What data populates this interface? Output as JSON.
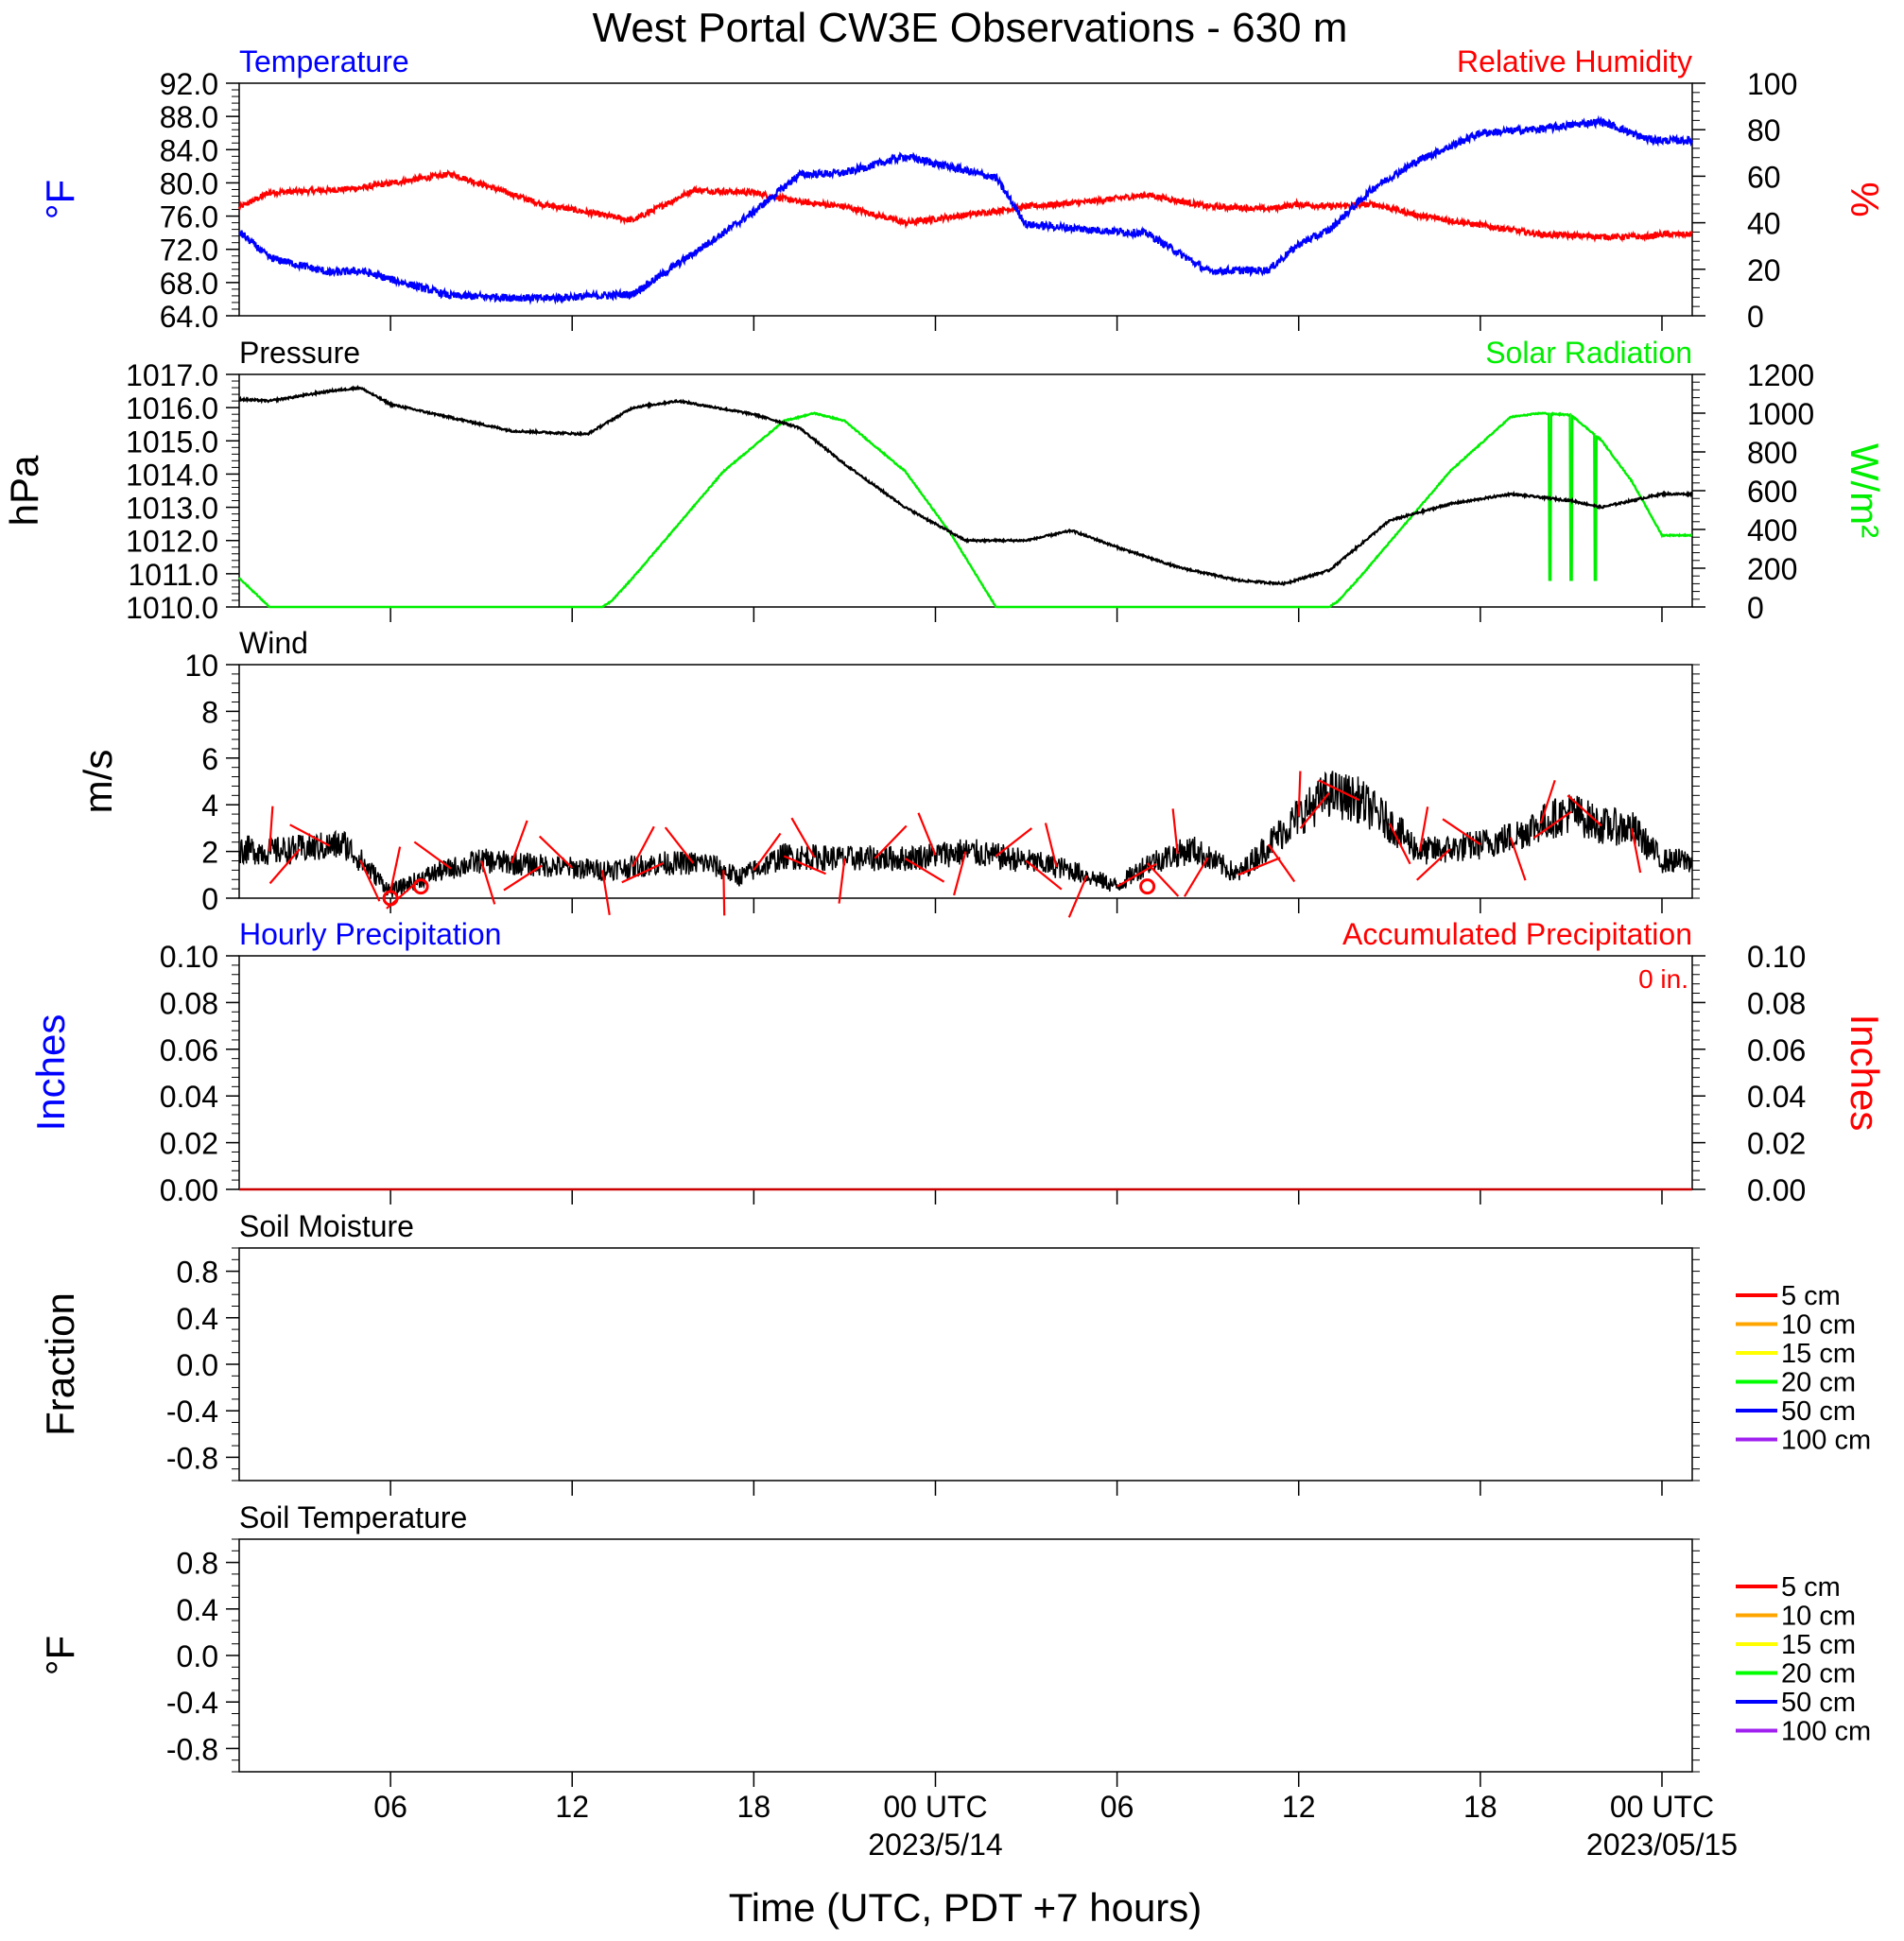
{
  "title": "West Portal CW3E Observations - 630 m",
  "xlabel": "Time (UTC, PDT +7 hours)",
  "colors": {
    "temperature": "#0000ff",
    "humidity": "#ff0000",
    "pressure": "#000000",
    "solar": "#00ee00",
    "wind": "#000000",
    "barb": "#ff0000",
    "hourly_precip": "#0000ff",
    "accum_precip": "#cc0000"
  },
  "chart_data": [
    {
      "type": "line",
      "panel": "temperature-humidity",
      "title_left": "Temperature",
      "title_right": "Relative Humidity",
      "ylabel_left": "°F",
      "ylabel_right": "%",
      "ylim_left": [
        64,
        92
      ],
      "ylim_right": [
        0,
        100
      ],
      "yticks_left": [
        "92.0",
        "88.0",
        "84.0",
        "80.0",
        "76.0",
        "72.0",
        "68.0",
        "64.0"
      ],
      "yticks_right": [
        "100",
        "80",
        "60",
        "40",
        "20",
        "0"
      ],
      "x_hours_relative_to_0000utc_2023-05-13": [
        0,
        2,
        4,
        5,
        8,
        11,
        14,
        16,
        18,
        19.5,
        21,
        23,
        26,
        27,
        29,
        31,
        33,
        35,
        36,
        37,
        38.5,
        40,
        42,
        44,
        46,
        47.5,
        48
      ],
      "series": [
        {
          "name": "Temperature",
          "axis": "left",
          "values": [
            77.2,
            71.0,
            69.2,
            69.4,
            66.4,
            66.1,
            66.6,
            71.5,
            76.5,
            81.0,
            81.2,
            83.2,
            80.6,
            75.0,
            74.4,
            73.9,
            69.4,
            69.5,
            72.6,
            74.3,
            79.5,
            82.8,
            86.0,
            86.5,
            87.4,
            85.3,
            85.1
          ]
        },
        {
          "name": "Relative Humidity",
          "axis": "right",
          "values": [
            40,
            53,
            54,
            55,
            61,
            48,
            41,
            54,
            53,
            49,
            47,
            40,
            45,
            47,
            49,
            52,
            47,
            46,
            48,
            47,
            48,
            43,
            39,
            35,
            34,
            34,
            35
          ]
        }
      ]
    },
    {
      "type": "line",
      "panel": "pressure-solar",
      "title_left": "Pressure",
      "title_right": "Solar Radiation",
      "ylabel_left": "hPa",
      "ylabel_right": "W/m²",
      "ylim_left": [
        1010,
        1017
      ],
      "ylim_right": [
        0,
        1200
      ],
      "yticks_left": [
        "1017.0",
        "1016.0",
        "1015.0",
        "1014.0",
        "1013.0",
        "1012.0",
        "1011.0",
        "1010.0"
      ],
      "yticks_right": [
        "1200",
        "1000",
        "800",
        "600",
        "400",
        "200",
        "0"
      ],
      "series": [
        {
          "name": "Pressure",
          "axis": "left",
          "x": [
            0,
            2,
            4,
            5,
            6,
            8,
            10,
            12.5,
            14,
            15.5,
            18,
            19.5,
            21,
            23,
            25,
            27,
            28.5,
            30,
            32,
            34,
            35.5,
            37,
            39,
            41,
            43,
            45,
            46,
            48
          ],
          "values": [
            1016.3,
            1016.2,
            1016.5,
            1016.6,
            1016.1,
            1015.7,
            1015.3,
            1015.2,
            1016.0,
            1016.2,
            1015.8,
            1015.4,
            1014.3,
            1013.0,
            1012.0,
            1012.0,
            1012.3,
            1011.8,
            1011.2,
            1010.8,
            1010.7,
            1011.1,
            1012.6,
            1013.1,
            1013.4,
            1013.2,
            1013.0,
            1013.4
          ]
        },
        {
          "name": "Solar Radiation",
          "axis": "right",
          "x": [
            0,
            1,
            2,
            13,
            13.3,
            14,
            17,
            19,
            20,
            21,
            23,
            24.5,
            26,
            37,
            37.3,
            38,
            41,
            43,
            44,
            45,
            46,
            47,
            48
          ],
          "values": [
            380,
            150,
            0,
            0,
            30,
            150,
            700,
            960,
            1000,
            960,
            700,
            380,
            0,
            0,
            30,
            150,
            700,
            980,
            1000,
            990,
            860,
            650,
            370
          ]
        }
      ],
      "dropouts_hours": [
        44.3,
        45.0,
        45.8
      ],
      "dropout_min_wm2": 140
    },
    {
      "type": "line",
      "panel": "wind",
      "title_left": "Wind",
      "ylabel_left": "m/s",
      "ylim_left": [
        0,
        10
      ],
      "yticks_left": [
        "10",
        "8",
        "6",
        "4",
        "2",
        "0"
      ],
      "series": [
        {
          "name": "Wind",
          "axis": "left",
          "x": [
            0,
            2,
            3,
            4.5,
            6,
            7.5,
            9,
            11,
            13,
            15,
            16.5,
            17.5,
            19,
            21,
            23,
            25,
            27,
            28.5,
            30,
            31,
            32.5,
            34,
            35,
            36,
            37,
            38,
            39,
            40,
            41,
            42,
            43,
            44,
            45,
            46,
            47,
            48
          ],
          "values": [
            2.2,
            2.0,
            2.1,
            2.3,
            0.3,
            1.1,
            1.6,
            1.4,
            1.2,
            1.5,
            1.5,
            0.9,
            1.8,
            1.7,
            1.7,
            2.0,
            1.6,
            1.2,
            0.5,
            1.5,
            2.1,
            1.0,
            2.3,
            3.5,
            4.5,
            4.2,
            3.2,
            2.0,
            2.1,
            2.3,
            2.6,
            3.2,
            3.7,
            3.1,
            3.0,
            1.6
          ]
        }
      ],
      "calm_markers_hours": [
        6.0,
        7.0,
        31.0
      ]
    },
    {
      "type": "line",
      "panel": "precipitation",
      "title_left": "Hourly Precipitation",
      "title_right": "Accumulated Precipitation",
      "annotation": "0 in.",
      "ylabel_left": "Inches",
      "ylabel_right": "Inches",
      "ylim_left": [
        0,
        0.1
      ],
      "ylim_right": [
        0,
        0.1
      ],
      "yticks_left": [
        "0.10",
        "0.08",
        "0.06",
        "0.04",
        "0.02",
        "0.00"
      ],
      "yticks_right": [
        "0.10",
        "0.08",
        "0.06",
        "0.04",
        "0.02",
        "0.00"
      ],
      "series": [
        {
          "name": "Hourly Precipitation",
          "axis": "left",
          "x": [
            0,
            48
          ],
          "values": [
            0,
            0
          ]
        },
        {
          "name": "Accumulated Precipitation",
          "axis": "right",
          "x": [
            0,
            48
          ],
          "values": [
            0,
            0
          ]
        }
      ]
    },
    {
      "type": "line",
      "panel": "soil-moisture",
      "title_left": "Soil Moisture",
      "ylabel_left": "Fraction",
      "ylim_left": [
        -1,
        1
      ],
      "yticks_left": [
        "0.8",
        "0.4",
        "0.0",
        "-0.4",
        "-0.8"
      ],
      "legend": [
        {
          "label": "5 cm",
          "color": "#ff0000"
        },
        {
          "label": "10 cm",
          "color": "#ffa500"
        },
        {
          "label": "15 cm",
          "color": "#ffff00"
        },
        {
          "label": "20 cm",
          "color": "#00ff00"
        },
        {
          "label": "50 cm",
          "color": "#0000ff"
        },
        {
          "label": "100 cm",
          "color": "#a020f0"
        }
      ],
      "series": []
    },
    {
      "type": "line",
      "panel": "soil-temperature",
      "title_left": "Soil Temperature",
      "ylabel_left": "°F",
      "ylim_left": [
        -1,
        1
      ],
      "yticks_left": [
        "0.8",
        "0.4",
        "0.0",
        "-0.4",
        "-0.8"
      ],
      "legend": [
        {
          "label": "5 cm",
          "color": "#ff0000"
        },
        {
          "label": "10 cm",
          "color": "#ffa500"
        },
        {
          "label": "15 cm",
          "color": "#ffff00"
        },
        {
          "label": "20 cm",
          "color": "#00ff00"
        },
        {
          "label": "50 cm",
          "color": "#0000ff"
        },
        {
          "label": "100 cm",
          "color": "#a020f0"
        }
      ],
      "series": []
    }
  ],
  "x_axis": {
    "range_hours": [
      1,
      49
    ],
    "tick_hours": [
      6,
      12,
      18,
      24,
      30,
      36,
      42,
      48
    ],
    "tick_labels": [
      "06",
      "12",
      "18",
      "00 UTC",
      "06",
      "12",
      "18",
      "00 UTC"
    ],
    "date_labels": [
      {
        "hour": 24,
        "text": "2023/5/14"
      },
      {
        "hour": 48,
        "text": "2023/05/15"
      }
    ]
  }
}
